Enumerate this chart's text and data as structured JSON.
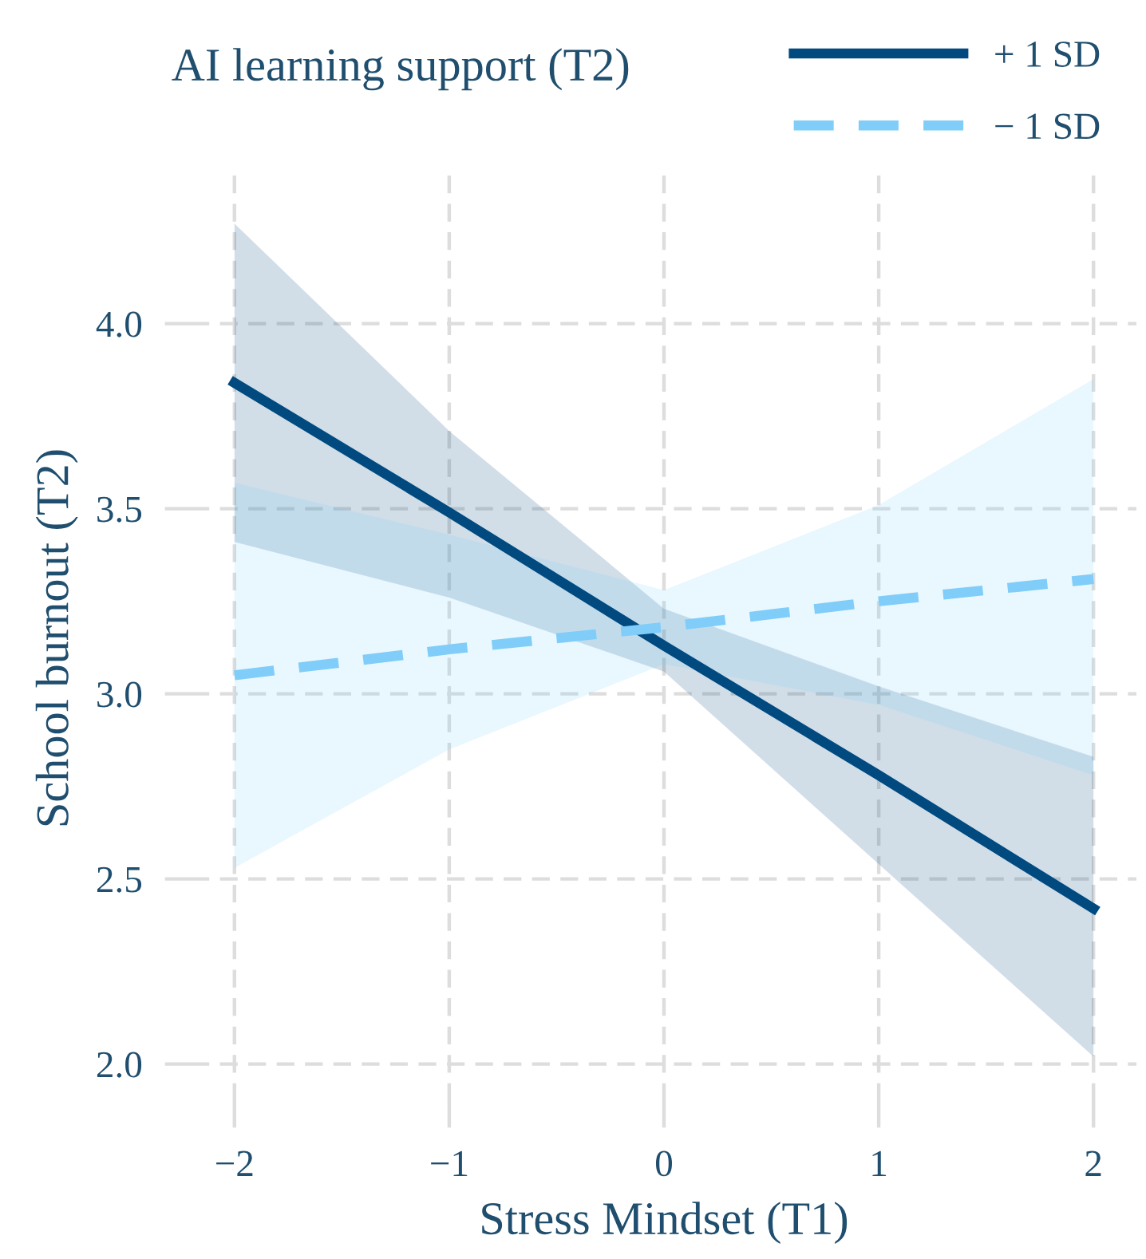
{
  "chart_data": {
    "type": "line",
    "xlabel": "Stress Mindset (T1)",
    "ylabel": "School burnout (T2)",
    "legend_title": "AI learning support (T2)",
    "legend": "top right",
    "grid": true,
    "xlim": [
      -2.2,
      2.2
    ],
    "xticks": [
      {
        "value": -2,
        "label": "−2"
      },
      {
        "value": -1,
        "label": "−1"
      },
      0,
      1,
      2
    ],
    "ylim": [
      1.9,
      4.4
    ],
    "yticks": [
      {
        "value": 2,
        "label": "2.0"
      },
      {
        "value": 2.5,
        "label": "2.5"
      },
      {
        "value": 3,
        "label": "3.0"
      },
      {
        "value": 3.5,
        "label": "3.5"
      },
      {
        "value": 4,
        "label": "4.0"
      }
    ],
    "series": [
      {
        "name": "+ 1 SD",
        "color": "#004a80",
        "line_style": "solid",
        "x": [
          -2,
          -1,
          0,
          1,
          2
        ],
        "values": [
          3.84,
          3.49,
          3.13,
          2.78,
          2.42
        ],
        "lower": [
          3.41,
          3.26,
          3.06,
          2.54,
          2.02
        ],
        "upper": [
          4.27,
          3.71,
          3.23,
          3.02,
          2.83
        ]
      },
      {
        "name": "− 1 SD",
        "color": "#7fcdf8",
        "line_style": "dashed",
        "x": [
          -2,
          -1,
          0,
          1,
          2
        ],
        "values": [
          3.05,
          3.12,
          3.18,
          3.25,
          3.31
        ],
        "lower": [
          2.53,
          2.85,
          3.08,
          2.97,
          2.78
        ],
        "upper": [
          3.57,
          3.43,
          3.28,
          3.51,
          3.85
        ]
      }
    ]
  }
}
